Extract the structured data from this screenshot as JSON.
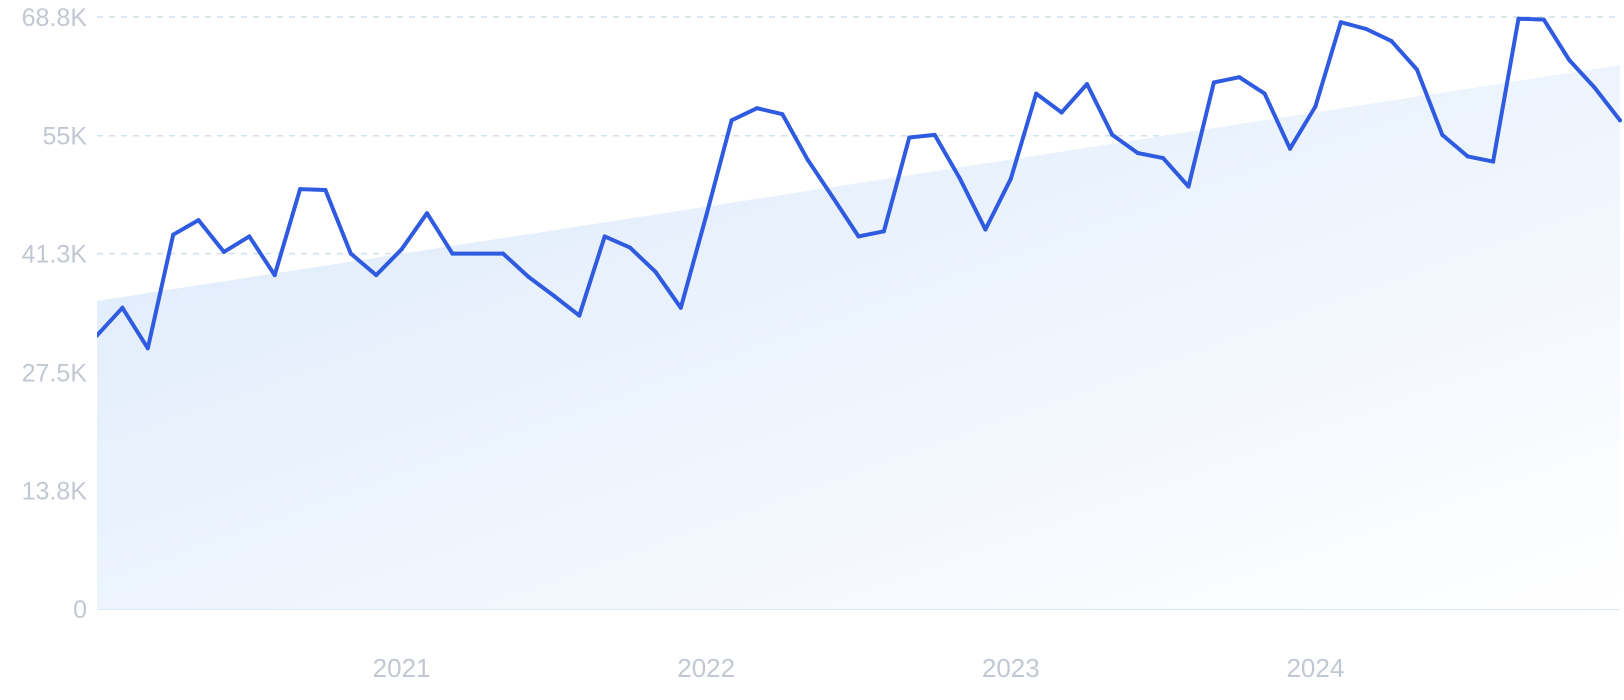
{
  "chart_data": {
    "type": "line",
    "title": "",
    "xlabel": "",
    "ylabel": "",
    "ylim": [
      0,
      68800
    ],
    "y_ticks": [
      0,
      13800,
      27500,
      41300,
      55000,
      68800
    ],
    "y_tick_labels": [
      "0",
      "13.8K",
      "27.5K",
      "41.3K",
      "55K",
      "68.8K"
    ],
    "x_tick_labels": [
      "2021",
      "2022",
      "2023",
      "2024"
    ],
    "x_ticks": [
      "2021-01",
      "2022-01",
      "2023-01",
      "2024-01"
    ],
    "grid": true,
    "trend": {
      "start": 35800,
      "end": 63200
    },
    "series": [
      {
        "color": "#2f5be0",
        "x": [
          "2020-01",
          "2020-02",
          "2020-03",
          "2020-04",
          "2020-05",
          "2020-06",
          "2020-07",
          "2020-08",
          "2020-09",
          "2020-10",
          "2020-11",
          "2020-12",
          "2021-01",
          "2021-02",
          "2021-03",
          "2021-04",
          "2021-05",
          "2021-06",
          "2021-07",
          "2021-08",
          "2021-09",
          "2021-10",
          "2021-11",
          "2021-12",
          "2022-01",
          "2022-02",
          "2022-03",
          "2022-04",
          "2022-05",
          "2022-06",
          "2022-07",
          "2022-08",
          "2022-09",
          "2022-10",
          "2022-11",
          "2022-12",
          "2023-01",
          "2023-02",
          "2023-03",
          "2023-04",
          "2023-05",
          "2023-06",
          "2023-07",
          "2023-08",
          "2023-09",
          "2023-10",
          "2023-11",
          "2023-12",
          "2024-01",
          "2024-02",
          "2024-03",
          "2024-04",
          "2024-05",
          "2024-06",
          "2024-07",
          "2024-08",
          "2024-09",
          "2024-10",
          "2024-11",
          "2024-12",
          "2025-01"
        ],
        "values": [
          31800,
          35000,
          30300,
          43500,
          45200,
          41500,
          43300,
          38800,
          48800,
          48700,
          41300,
          38800,
          41800,
          46000,
          41300,
          41300,
          41300,
          38600,
          36400,
          34100,
          43300,
          42000,
          39200,
          35000,
          45700,
          56800,
          58200,
          57500,
          52200,
          47800,
          43300,
          43900,
          54800,
          55100,
          50000,
          44100,
          50000,
          59900,
          57700,
          61000,
          55100,
          53000,
          52400,
          49100,
          61200,
          61800,
          59900,
          53500,
          58400,
          68200,
          67400,
          66000,
          62700,
          55100,
          52600,
          52000,
          68600,
          68500,
          63800,
          60600,
          56800
        ]
      }
    ]
  }
}
